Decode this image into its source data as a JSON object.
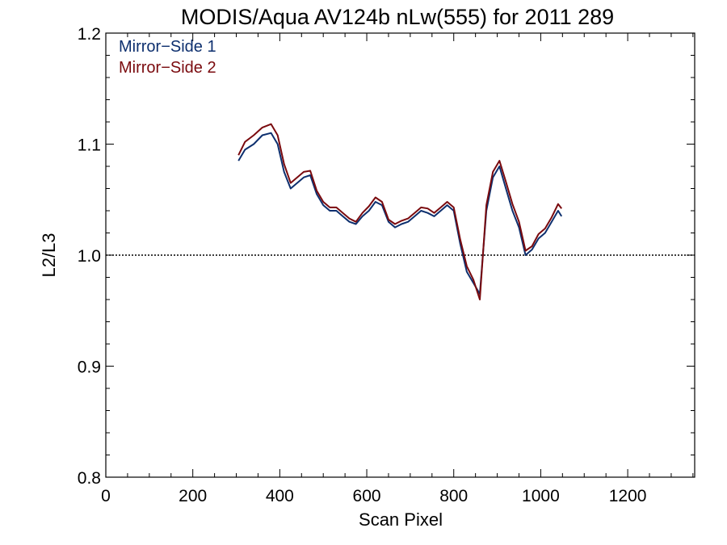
{
  "chart_data": {
    "type": "line",
    "title": "MODIS/Aqua AV124b nLw(555) for 2011 289",
    "xlabel": "Scan Pixel",
    "ylabel": "L2/L3",
    "xlim": [
      0,
      1354
    ],
    "ylim": [
      0.8,
      1.2
    ],
    "xticks": [
      0,
      200,
      400,
      600,
      800,
      1000,
      1200
    ],
    "xtick_labels": [
      "0",
      "200",
      "400",
      "600",
      "800",
      "1000",
      "1200"
    ],
    "yticks": [
      0.8,
      0.9,
      1.0,
      1.1,
      1.2
    ],
    "ytick_labels": [
      "0.8",
      "0.9",
      "1.0",
      "1.1",
      "1.2"
    ],
    "reference_line": {
      "y": 1.0,
      "style": "dotted"
    },
    "legend_position": "top-left",
    "grid": false,
    "series": [
      {
        "name": "Mirror−Side 1",
        "color": "#0d2f6e",
        "x": [
          305,
          320,
          340,
          360,
          380,
          395,
          410,
          425,
          440,
          455,
          470,
          485,
          500,
          515,
          530,
          545,
          560,
          575,
          590,
          605,
          620,
          635,
          650,
          665,
          680,
          695,
          710,
          725,
          740,
          755,
          770,
          785,
          800,
          815,
          830,
          845,
          860,
          875,
          890,
          905,
          920,
          935,
          950,
          965,
          980,
          995,
          1010,
          1025,
          1040,
          1048
        ],
        "values": [
          1.085,
          1.095,
          1.1,
          1.108,
          1.11,
          1.1,
          1.075,
          1.06,
          1.065,
          1.07,
          1.072,
          1.055,
          1.045,
          1.04,
          1.04,
          1.035,
          1.03,
          1.028,
          1.035,
          1.04,
          1.048,
          1.045,
          1.03,
          1.025,
          1.028,
          1.03,
          1.035,
          1.04,
          1.038,
          1.035,
          1.04,
          1.045,
          1.04,
          1.01,
          0.985,
          0.975,
          0.965,
          1.04,
          1.07,
          1.08,
          1.06,
          1.04,
          1.025,
          1.0,
          1.005,
          1.015,
          1.02,
          1.03,
          1.04,
          1.035
        ]
      },
      {
        "name": "Mirror−Side 2",
        "color": "#7a0a0e",
        "x": [
          305,
          320,
          340,
          360,
          380,
          395,
          410,
          425,
          440,
          455,
          470,
          485,
          500,
          515,
          530,
          545,
          560,
          575,
          590,
          605,
          620,
          635,
          650,
          665,
          680,
          695,
          710,
          725,
          740,
          755,
          770,
          785,
          800,
          815,
          830,
          845,
          860,
          875,
          890,
          905,
          920,
          935,
          950,
          965,
          980,
          995,
          1010,
          1025,
          1040,
          1048
        ],
        "values": [
          1.09,
          1.102,
          1.108,
          1.115,
          1.118,
          1.108,
          1.082,
          1.065,
          1.07,
          1.075,
          1.076,
          1.058,
          1.048,
          1.043,
          1.043,
          1.038,
          1.033,
          1.03,
          1.038,
          1.044,
          1.052,
          1.048,
          1.032,
          1.028,
          1.031,
          1.033,
          1.038,
          1.043,
          1.042,
          1.038,
          1.043,
          1.048,
          1.043,
          1.014,
          0.99,
          0.978,
          0.96,
          1.045,
          1.075,
          1.085,
          1.066,
          1.046,
          1.03,
          1.004,
          1.008,
          1.019,
          1.024,
          1.034,
          1.046,
          1.042
        ]
      }
    ]
  }
}
